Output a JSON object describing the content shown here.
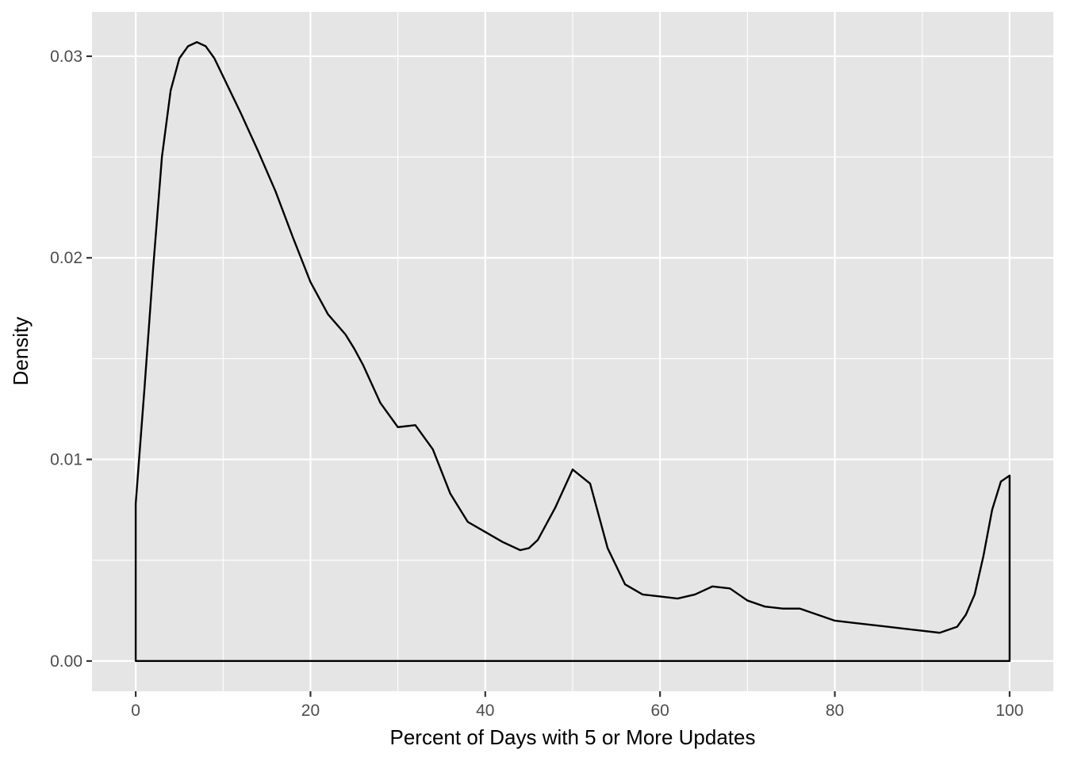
{
  "chart_data": {
    "type": "area",
    "geom": "density",
    "title": "",
    "xlabel": "Percent of Days with 5 or More Updates",
    "ylabel": "Density",
    "xlim": [
      -5,
      105
    ],
    "ylim": [
      -0.0015,
      0.0322
    ],
    "x_ticks": [
      0,
      20,
      40,
      60,
      80,
      100
    ],
    "x_tick_labels": [
      "0",
      "20",
      "40",
      "60",
      "80",
      "100"
    ],
    "y_ticks": [
      0,
      0.01,
      0.02,
      0.03
    ],
    "y_tick_labels": [
      "0.00",
      "0.01",
      "0.02",
      "0.03"
    ],
    "x_minor_ticks": [
      10,
      30,
      50,
      70,
      90
    ],
    "y_minor_ticks": [
      0.005,
      0.015,
      0.025
    ],
    "grid": true,
    "panel_background": "#e5e5e5",
    "grid_color": "#ffffff",
    "line_color": "#000000",
    "fill": "none",
    "series": [
      {
        "x": [
          0,
          1,
          2,
          3,
          4,
          5,
          6,
          7,
          8,
          9,
          10,
          12,
          14,
          16,
          18,
          20,
          22,
          24,
          25,
          26,
          28,
          30,
          32,
          34,
          36,
          38,
          40,
          42,
          44,
          45,
          46,
          48,
          50,
          52,
          54,
          56,
          58,
          60,
          62,
          64,
          66,
          68,
          70,
          72,
          74,
          76,
          78,
          80,
          82,
          84,
          86,
          88,
          90,
          92,
          94,
          95,
          96,
          97,
          98,
          99,
          100
        ],
        "y": [
          0.0078,
          0.0135,
          0.0195,
          0.025,
          0.0283,
          0.0299,
          0.0305,
          0.0307,
          0.0305,
          0.0299,
          0.029,
          0.0272,
          0.0253,
          0.0233,
          0.021,
          0.0188,
          0.0172,
          0.0162,
          0.0155,
          0.0147,
          0.0128,
          0.0116,
          0.0117,
          0.0105,
          0.0083,
          0.0069,
          0.0064,
          0.0059,
          0.0055,
          0.0056,
          0.006,
          0.0076,
          0.0095,
          0.0088,
          0.0056,
          0.0038,
          0.0033,
          0.0032,
          0.0031,
          0.0033,
          0.0037,
          0.0036,
          0.003,
          0.0027,
          0.0026,
          0.0026,
          0.0023,
          0.002,
          0.0019,
          0.0018,
          0.0017,
          0.0016,
          0.0015,
          0.0014,
          0.0017,
          0.0023,
          0.0033,
          0.0052,
          0.0075,
          0.0089,
          0.0092
        ]
      }
    ]
  }
}
